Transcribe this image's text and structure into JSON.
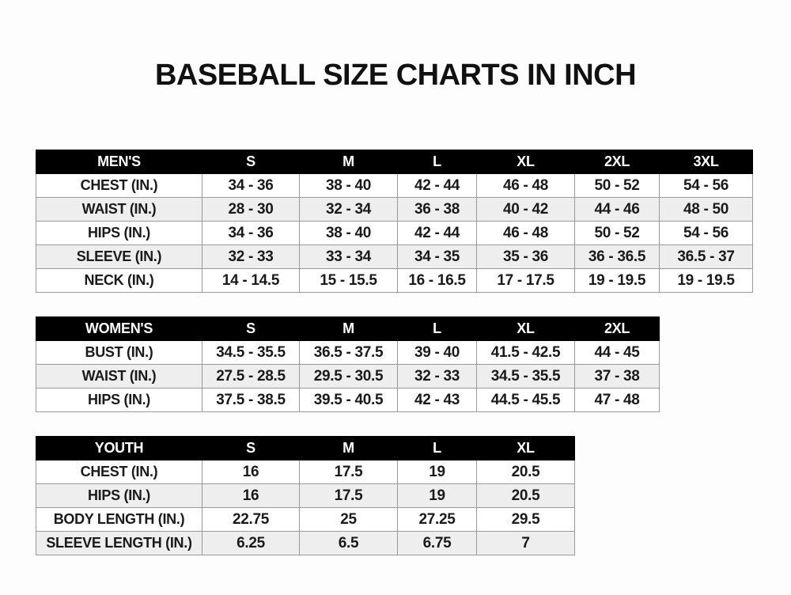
{
  "title": "BASEBALL SIZE CHARTS IN INCH",
  "tables": [
    {
      "id": "men",
      "header": [
        "MEN'S",
        "S",
        "M",
        "L",
        "XL",
        "2XL",
        "3XL"
      ],
      "rows": [
        [
          "CHEST (IN.)",
          "34 - 36",
          "38 - 40",
          "42 - 44",
          "46 - 48",
          "50 - 52",
          "54 - 56"
        ],
        [
          "WAIST (IN.)",
          "28 - 30",
          "32 - 34",
          "36 - 38",
          "40 - 42",
          "44 - 46",
          "48 - 50"
        ],
        [
          "HIPS (IN.)",
          "34 - 36",
          "38 - 40",
          "42 - 44",
          "46 - 48",
          "50 - 52",
          "54 - 56"
        ],
        [
          "SLEEVE (IN.)",
          "32 - 33",
          "33 - 34",
          "34 - 35",
          "35 - 36",
          "36 - 36.5",
          "36.5 - 37"
        ],
        [
          "NECK (IN.)",
          "14 - 14.5",
          "15 - 15.5",
          "16 - 16.5",
          "17 - 17.5",
          "19 - 19.5",
          "19 - 19.5"
        ]
      ]
    },
    {
      "id": "women",
      "header": [
        "WOMEN'S",
        "S",
        "M",
        "L",
        "XL",
        "2XL"
      ],
      "rows": [
        [
          "BUST (IN.)",
          "34.5 - 35.5",
          "36.5 - 37.5",
          "39 - 40",
          "41.5 - 42.5",
          "44 - 45"
        ],
        [
          "WAIST (IN.)",
          "27.5 - 28.5",
          "29.5 - 30.5",
          "32 - 33",
          "34.5 - 35.5",
          "37 - 38"
        ],
        [
          "HIPS (IN.)",
          "37.5 - 38.5",
          "39.5 - 40.5",
          "42 - 43",
          "44.5 - 45.5",
          "47 - 48"
        ]
      ]
    },
    {
      "id": "youth",
      "header": [
        "YOUTH",
        "S",
        "M",
        "L",
        "XL"
      ],
      "rows": [
        [
          "CHEST (IN.)",
          "16",
          "17.5",
          "19",
          "20.5"
        ],
        [
          "HIPS (IN.)",
          "16",
          "17.5",
          "19",
          "20.5"
        ],
        [
          "BODY LENGTH (IN.)",
          "22.75",
          "25",
          "27.25",
          "29.5"
        ],
        [
          "SLEEVE LENGTH (IN.)",
          "6.25",
          "6.5",
          "6.75",
          "7"
        ]
      ]
    }
  ]
}
